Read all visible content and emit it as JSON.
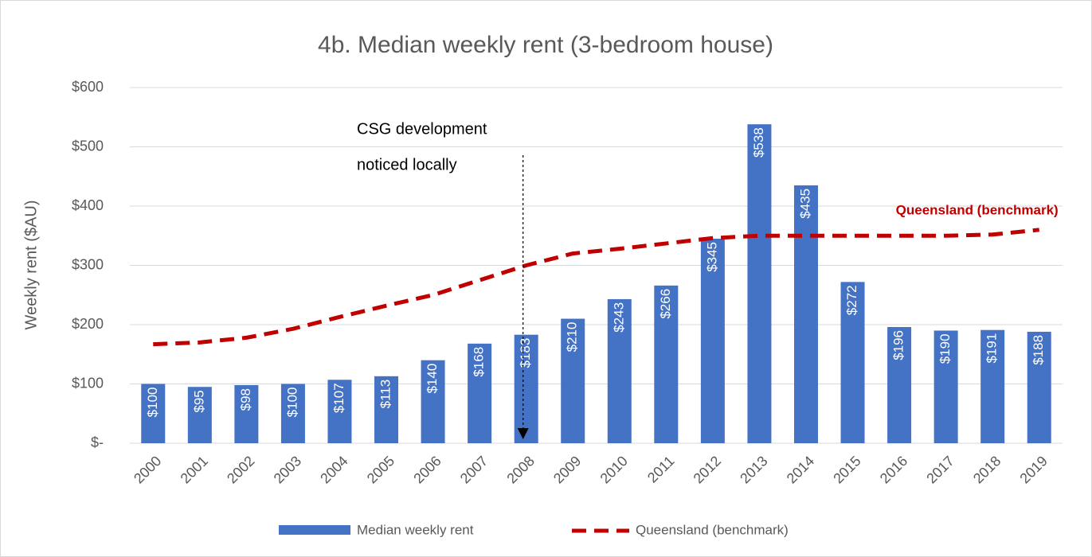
{
  "chart_data": {
    "type": "bar",
    "title": "4b. Median weekly rent (3-bedroom house)",
    "y_label": "Weekly rent ($AU)",
    "annotation": [
      "CSG development",
      "noticed locally"
    ],
    "categories": [
      "2000",
      "2001",
      "2002",
      "2003",
      "2004",
      "2005",
      "2006",
      "2007",
      "2008",
      "2009",
      "2010",
      "2011",
      "2012",
      "2013",
      "2014",
      "2015",
      "2016",
      "2017",
      "2018",
      "2019"
    ],
    "series": [
      {
        "name": "Median weekly rent",
        "type": "bar",
        "color": "#4472c4",
        "values": [
          100,
          95,
          98,
          100,
          107,
          113,
          140,
          168,
          183,
          210,
          243,
          266,
          345,
          538,
          435,
          272,
          196,
          190,
          191,
          188
        ],
        "value_labels": [
          "$100",
          "$95",
          "$98",
          "$100",
          "$107",
          "$113",
          "$140",
          "$168",
          "$183",
          "$210",
          "$243",
          "$266",
          "$345",
          "$538",
          "$435",
          "$272",
          "$196",
          "$190",
          "$191",
          "$188"
        ]
      },
      {
        "name": "Queensland (benchmark)",
        "type": "line",
        "color": "#c00000",
        "values": [
          167,
          170,
          178,
          193,
          213,
          232,
          250,
          275,
          300,
          320,
          328,
          337,
          346,
          350,
          350,
          350,
          350,
          350,
          352,
          360
        ]
      }
    ],
    "ylim": [
      0,
      600
    ],
    "yticks": [
      {
        "value": 0,
        "label": "$-"
      },
      {
        "value": 100,
        "label": "$100"
      },
      {
        "value": 200,
        "label": "$200"
      },
      {
        "value": 300,
        "label": "$300"
      },
      {
        "value": 400,
        "label": "$400"
      },
      {
        "value": 500,
        "label": "$500"
      },
      {
        "value": 600,
        "label": "$600"
      }
    ],
    "grid": true
  }
}
